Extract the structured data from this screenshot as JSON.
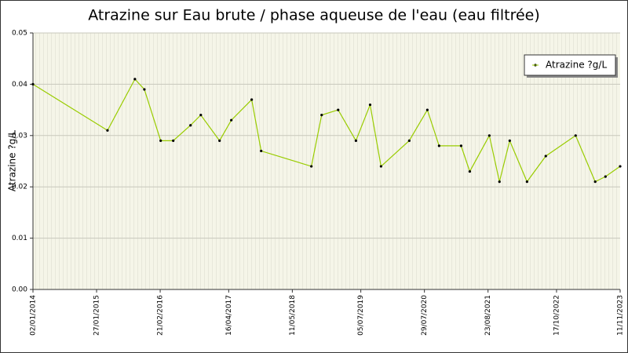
{
  "chart_data": {
    "type": "line",
    "title": "Atrazine sur Eau brute / phase aqueuse de l'eau (eau filtrée)",
    "y_label": "Atrazine ?g/L",
    "x": [
      "02/01/2014",
      "04/04/2015",
      "19/09/2015",
      "16/11/2015",
      "24/02/2016",
      "11/05/2016",
      "25/08/2016",
      "27/10/2016",
      "19/02/2017",
      "02/05/2017",
      "04/09/2017",
      "01/11/2017",
      "05/09/2018",
      "07/11/2018",
      "16/02/2019",
      "05/06/2019",
      "31/08/2019",
      "06/11/2019",
      "27/04/2020",
      "16/08/2020",
      "27/10/2020",
      "11/03/2021",
      "03/05/2021",
      "31/08/2021",
      "01/11/2021",
      "03/01/2022",
      "19/04/2022",
      "12/08/2022",
      "11/02/2023",
      "11/06/2023",
      "13/08/2023",
      "11/11/2023"
    ],
    "series": [
      {
        "name": "Atrazine ?g/L",
        "color": "#99cc00",
        "values": [
          0.04,
          0.031,
          0.041,
          0.039,
          0.029,
          0.029,
          0.032,
          0.034,
          0.029,
          0.033,
          0.037,
          0.027,
          0.024,
          0.034,
          0.035,
          0.029,
          0.036,
          0.024,
          0.029,
          0.035,
          0.028,
          0.028,
          0.023,
          0.03,
          0.021,
          0.029,
          0.021,
          0.026,
          0.03,
          0.021,
          0.022,
          0.024
        ]
      }
    ],
    "xlim": [
      "02/01/2014",
      "11/11/2023"
    ],
    "xticks": [
      "02/01/2014",
      "27/01/2015",
      "21/02/2016",
      "16/04/2017",
      "11/05/2018",
      "05/07/2019",
      "29/07/2020",
      "23/08/2021",
      "17/10/2022",
      "11/11/2023"
    ],
    "ylim": [
      0,
      0.05
    ],
    "yticks": [
      {
        "value": 0,
        "label": "0.00"
      },
      0.01,
      0.02,
      0.03,
      0.04,
      0.05
    ],
    "grid": true,
    "legend": "upper right"
  }
}
